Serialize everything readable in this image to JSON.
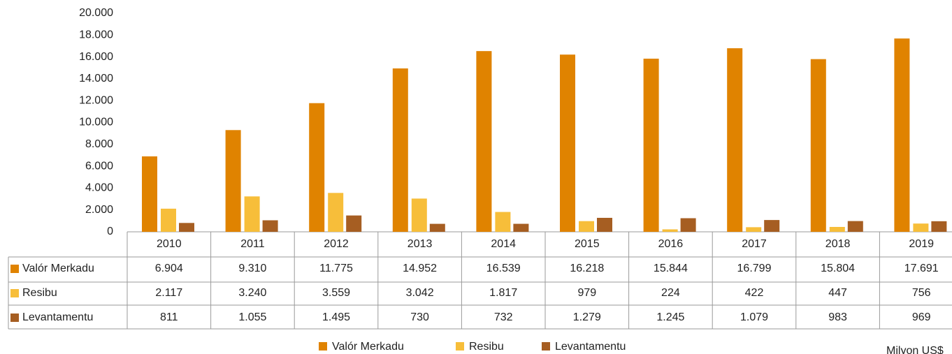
{
  "chart_data": {
    "type": "bar",
    "categories": [
      "2010",
      "2011",
      "2012",
      "2013",
      "2014",
      "2015",
      "2016",
      "2017",
      "2018",
      "2019"
    ],
    "series": [
      {
        "name": "Valór Merkadu",
        "color": "#E08300",
        "values": [
          6904,
          9310,
          11775,
          14952,
          16539,
          16218,
          15844,
          16799,
          15804,
          17691
        ],
        "value_labels": [
          "6.904",
          "9.310",
          "11.775",
          "14.952",
          "16.539",
          "16.218",
          "15.844",
          "16.799",
          "15.804",
          "17.691"
        ]
      },
      {
        "name": "Resibu",
        "color": "#F7BE3A",
        "values": [
          2117,
          3240,
          3559,
          3042,
          1817,
          979,
          224,
          422,
          447,
          756
        ],
        "value_labels": [
          "2.117",
          "3.240",
          "3.559",
          "3.042",
          "1.817",
          "979",
          "224",
          "422",
          "447",
          "756"
        ]
      },
      {
        "name": "Levantamentu",
        "color": "#A65E22",
        "values": [
          811,
          1055,
          1495,
          730,
          732,
          1279,
          1245,
          1079,
          983,
          969
        ],
        "value_labels": [
          "811",
          "1.055",
          "1.495",
          "730",
          "732",
          "1.279",
          "1.245",
          "1.079",
          "983",
          "969"
        ]
      }
    ],
    "ylim": [
      0,
      20000
    ],
    "yticks": [
      0,
      {
        "value": 2000,
        "label": "2.000"
      },
      {
        "value": 4000,
        "label": "4.000"
      },
      {
        "value": 6000,
        "label": "6.000"
      },
      {
        "value": 8000,
        "label": "8.000"
      },
      {
        "value": 10000,
        "label": "10.000"
      },
      {
        "value": 12000,
        "label": "12.000"
      },
      {
        "value": 14000,
        "label": "14.000"
      },
      {
        "value": 16000,
        "label": "16.000"
      },
      {
        "value": 18000,
        "label": "18.000"
      },
      {
        "value": 20000,
        "label": "20.000"
      }
    ],
    "grid": false,
    "unit_note": "Milyon US$"
  }
}
